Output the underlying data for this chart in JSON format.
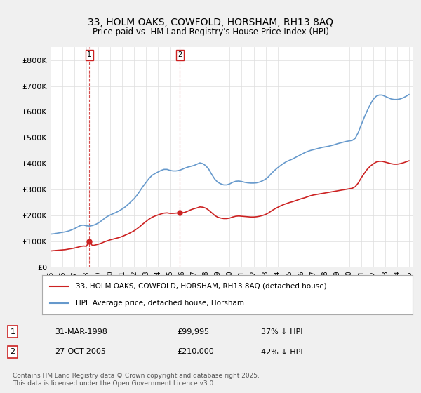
{
  "title": "33, HOLM OAKS, COWFOLD, HORSHAM, RH13 8AQ",
  "subtitle": "Price paid vs. HM Land Registry's House Price Index (HPI)",
  "ylabel": "",
  "background_color": "#f0f0f0",
  "plot_bg_color": "#ffffff",
  "hpi_color": "#6699cc",
  "price_color": "#cc2222",
  "vline_color": "#cc2222",
  "ylim": [
    0,
    850000
  ],
  "yticks": [
    0,
    100000,
    200000,
    300000,
    400000,
    500000,
    600000,
    700000,
    800000
  ],
  "ytick_labels": [
    "£0",
    "£100K",
    "£200K",
    "£300K",
    "£400K",
    "£500K",
    "£600K",
    "£700K",
    "£800K"
  ],
  "sale1_date": 1998.25,
  "sale1_price": 99995,
  "sale1_label": "1",
  "sale2_date": 2005.82,
  "sale2_price": 210000,
  "sale2_label": "2",
  "legend_line1": "33, HOLM OAKS, COWFOLD, HORSHAM, RH13 8AQ (detached house)",
  "legend_line2": "HPI: Average price, detached house, Horsham",
  "annotation1_box": "1",
  "annotation1_date": "31-MAR-1998",
  "annotation1_price": "£99,995",
  "annotation1_hpi": "37% ↓ HPI",
  "annotation2_box": "2",
  "annotation2_date": "27-OCT-2005",
  "annotation2_price": "£210,000",
  "annotation2_hpi": "42% ↓ HPI",
  "footer": "Contains HM Land Registry data © Crown copyright and database right 2025.\nThis data is licensed under the Open Government Licence v3.0.",
  "hpi_x": [
    1995.0,
    1995.25,
    1995.5,
    1995.75,
    1996.0,
    1996.25,
    1996.5,
    1996.75,
    1997.0,
    1997.25,
    1997.5,
    1997.75,
    1998.0,
    1998.25,
    1998.5,
    1998.75,
    1999.0,
    1999.25,
    1999.5,
    1999.75,
    2000.0,
    2000.25,
    2000.5,
    2000.75,
    2001.0,
    2001.25,
    2001.5,
    2001.75,
    2002.0,
    2002.25,
    2002.5,
    2002.75,
    2003.0,
    2003.25,
    2003.5,
    2003.75,
    2004.0,
    2004.25,
    2004.5,
    2004.75,
    2005.0,
    2005.25,
    2005.5,
    2005.75,
    2006.0,
    2006.25,
    2006.5,
    2006.75,
    2007.0,
    2007.25,
    2007.5,
    2007.75,
    2008.0,
    2008.25,
    2008.5,
    2008.75,
    2009.0,
    2009.25,
    2009.5,
    2009.75,
    2010.0,
    2010.25,
    2010.5,
    2010.75,
    2011.0,
    2011.25,
    2011.5,
    2011.75,
    2012.0,
    2012.25,
    2012.5,
    2012.75,
    2013.0,
    2013.25,
    2013.5,
    2013.75,
    2014.0,
    2014.25,
    2014.5,
    2014.75,
    2015.0,
    2015.25,
    2015.5,
    2015.75,
    2016.0,
    2016.25,
    2016.5,
    2016.75,
    2017.0,
    2017.25,
    2017.5,
    2017.75,
    2018.0,
    2018.25,
    2018.5,
    2018.75,
    2019.0,
    2019.25,
    2019.5,
    2019.75,
    2020.0,
    2020.25,
    2020.5,
    2020.75,
    2021.0,
    2021.25,
    2021.5,
    2021.75,
    2022.0,
    2022.25,
    2022.5,
    2022.75,
    2023.0,
    2023.25,
    2023.5,
    2023.75,
    2024.0,
    2024.25,
    2024.5,
    2024.75,
    2025.0
  ],
  "hpi_y": [
    128000,
    129000,
    131000,
    133000,
    135000,
    137000,
    140000,
    144000,
    149000,
    155000,
    161000,
    163000,
    160000,
    159000,
    161000,
    165000,
    171000,
    179000,
    188000,
    196000,
    202000,
    207000,
    212000,
    218000,
    225000,
    233000,
    243000,
    254000,
    265000,
    279000,
    296000,
    313000,
    328000,
    343000,
    355000,
    362000,
    368000,
    374000,
    378000,
    378000,
    374000,
    372000,
    372000,
    374000,
    378000,
    383000,
    387000,
    390000,
    393000,
    398000,
    403000,
    400000,
    392000,
    378000,
    358000,
    340000,
    328000,
    322000,
    318000,
    318000,
    322000,
    328000,
    332000,
    333000,
    331000,
    328000,
    326000,
    325000,
    325000,
    326000,
    329000,
    334000,
    340000,
    350000,
    363000,
    374000,
    384000,
    393000,
    401000,
    408000,
    413000,
    418000,
    424000,
    430000,
    436000,
    442000,
    447000,
    451000,
    454000,
    457000,
    460000,
    463000,
    465000,
    467000,
    470000,
    473000,
    477000,
    480000,
    483000,
    486000,
    488000,
    490000,
    498000,
    520000,
    550000,
    578000,
    604000,
    628000,
    648000,
    660000,
    665000,
    665000,
    660000,
    655000,
    650000,
    648000,
    648000,
    650000,
    654000,
    660000,
    667000
  ],
  "price_x": [
    1995.0,
    1995.25,
    1995.5,
    1995.75,
    1996.0,
    1996.25,
    1996.5,
    1996.75,
    1997.0,
    1997.25,
    1997.5,
    1997.75,
    1998.0,
    1998.25,
    1998.5,
    1998.75,
    1999.0,
    1999.25,
    1999.5,
    1999.75,
    2000.0,
    2000.25,
    2000.5,
    2000.75,
    2001.0,
    2001.25,
    2001.5,
    2001.75,
    2002.0,
    2002.25,
    2002.5,
    2002.75,
    2003.0,
    2003.25,
    2003.5,
    2003.75,
    2004.0,
    2004.25,
    2004.5,
    2004.75,
    2005.0,
    2005.25,
    2005.5,
    2005.75,
    2006.0,
    2006.25,
    2006.5,
    2006.75,
    2007.0,
    2007.25,
    2007.5,
    2007.75,
    2008.0,
    2008.25,
    2008.5,
    2008.75,
    2009.0,
    2009.25,
    2009.5,
    2009.75,
    2010.0,
    2010.25,
    2010.5,
    2010.75,
    2011.0,
    2011.25,
    2011.5,
    2011.75,
    2012.0,
    2012.25,
    2012.5,
    2012.75,
    2013.0,
    2013.25,
    2013.5,
    2013.75,
    2014.0,
    2014.25,
    2014.5,
    2014.75,
    2015.0,
    2015.25,
    2015.5,
    2015.75,
    2016.0,
    2016.25,
    2016.5,
    2016.75,
    2017.0,
    2017.25,
    2017.5,
    2017.75,
    2018.0,
    2018.25,
    2018.5,
    2018.75,
    2019.0,
    2019.25,
    2019.5,
    2019.75,
    2020.0,
    2020.25,
    2020.5,
    2020.75,
    2021.0,
    2021.25,
    2021.5,
    2021.75,
    2022.0,
    2022.25,
    2022.5,
    2022.75,
    2023.0,
    2023.25,
    2023.5,
    2023.75,
    2024.0,
    2024.25,
    2024.5,
    2024.75,
    2025.0
  ],
  "price_y": [
    63000,
    64000,
    65000,
    66000,
    67000,
    68000,
    70000,
    72000,
    74000,
    77000,
    80000,
    82000,
    81000,
    99995,
    84000,
    86000,
    89000,
    93000,
    98000,
    102000,
    106000,
    109000,
    112000,
    115000,
    119000,
    124000,
    129000,
    135000,
    141000,
    149000,
    158000,
    168000,
    177000,
    186000,
    193000,
    198000,
    202000,
    206000,
    209000,
    210000,
    208000,
    208000,
    209000,
    210000,
    210000,
    212000,
    217000,
    222000,
    226000,
    229000,
    233000,
    232000,
    228000,
    220000,
    210000,
    200000,
    193000,
    190000,
    188000,
    188000,
    190000,
    194000,
    197000,
    198000,
    197000,
    196000,
    195000,
    194000,
    194000,
    195000,
    197000,
    200000,
    204000,
    210000,
    218000,
    225000,
    231000,
    237000,
    242000,
    246000,
    250000,
    253000,
    257000,
    261000,
    265000,
    268000,
    272000,
    276000,
    279000,
    281000,
    283000,
    285000,
    287000,
    289000,
    291000,
    293000,
    295000,
    297000,
    299000,
    301000,
    303000,
    305000,
    311000,
    325000,
    345000,
    362000,
    378000,
    390000,
    399000,
    406000,
    409000,
    409000,
    406000,
    403000,
    400000,
    398000,
    398000,
    400000,
    403000,
    407000,
    411000
  ]
}
